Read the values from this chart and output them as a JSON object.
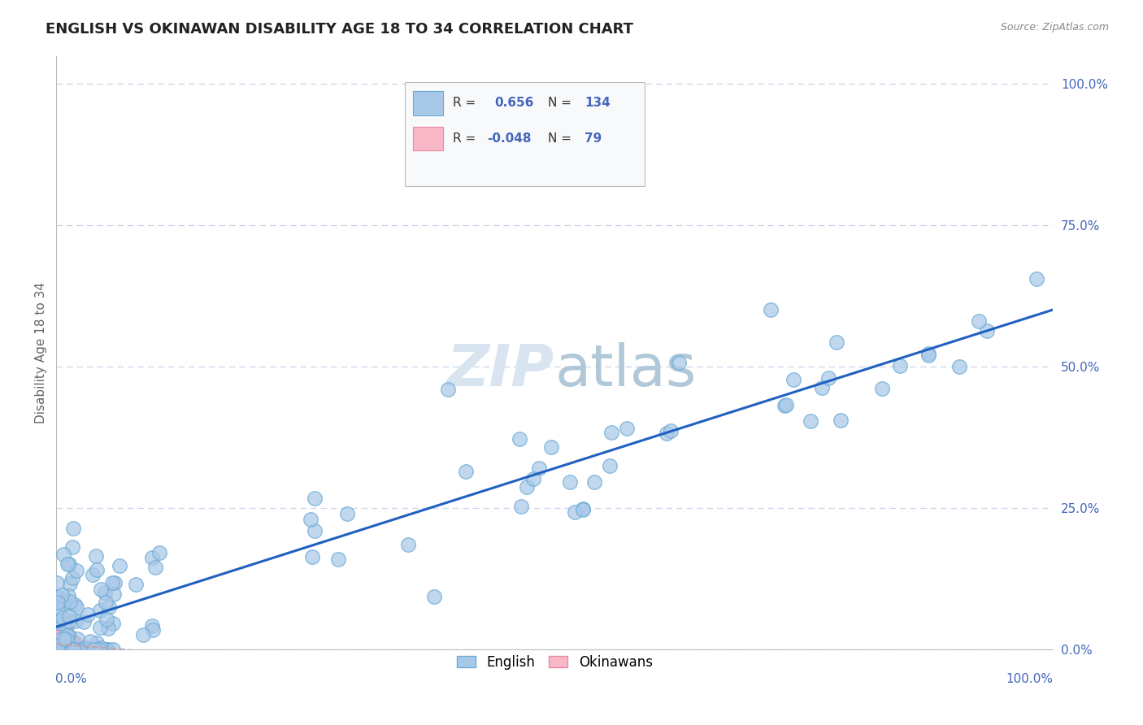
{
  "title": "ENGLISH VS OKINAWAN DISABILITY AGE 18 TO 34 CORRELATION CHART",
  "source": "Source: ZipAtlas.com",
  "ylabel": "Disability Age 18 to 34",
  "english_color": "#a8c8e8",
  "english_edge": "#6aaad4",
  "okinawan_color": "#f9b8c8",
  "okinawan_edge": "#e888a0",
  "trend_english_color": "#2060c0",
  "trend_okinawan_color": "#c8a0a8",
  "background_color": "#ffffff",
  "grid_color": "#c8d4e8",
  "watermark_color": "#d8e4f0",
  "title_color": "#222222",
  "source_color": "#888888",
  "axis_label_color": "#4466bb",
  "ylabel_color": "#666666"
}
